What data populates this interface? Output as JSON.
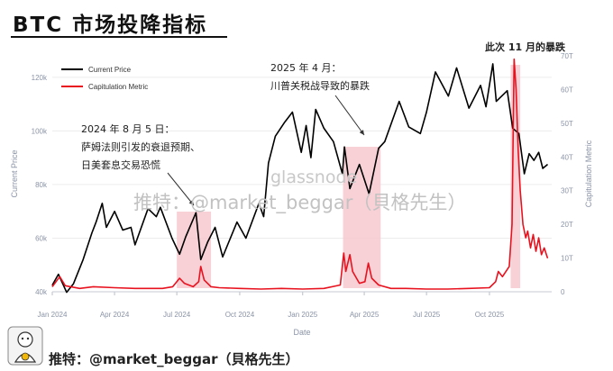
{
  "title": "BTC 市场投降指标",
  "annotations": {
    "aug2024_line1": "2024 年 8 月 5 日：",
    "aug2024_line2": "萨姆法则引发的衰退预期、",
    "aug2024_line3": "日美套息交易恐慌",
    "apr2025_line1": "2025 年 4 月：",
    "apr2025_line2": "川普关税战导致的暴跌",
    "nov2025": "此次 11 月的暴跌"
  },
  "watermark": {
    "main": "glassnode",
    "sub": "推特：@market_beggar（貝格先生）"
  },
  "footer": "推特：@market_beggar（貝格先生）",
  "colors": {
    "price": "#000000",
    "metric": "#e8121f",
    "highlight": "#f7c9d0"
  },
  "chart_data": {
    "type": "line",
    "xlabel": "Date",
    "ylabel_left": "Current Price",
    "ylabel_right": "Capitulation Metric",
    "legend": [
      "Current Price",
      "Capitulation Metric"
    ],
    "legend_position": "top-left",
    "x_ticks": [
      "Jan 2024",
      "Apr 2024",
      "Jul 2024",
      "Oct 2024",
      "Jan 2025",
      "Apr 2025",
      "Jul 2025",
      "Oct 2025"
    ],
    "y_left_ticks": [
      "40k",
      "60k",
      "80k",
      "100k",
      "120k"
    ],
    "y_left_lim": [
      40000,
      128000
    ],
    "y_right_ticks": [
      "0",
      "10T",
      "20T",
      "30T",
      "40T",
      "50T",
      "60T",
      "70T"
    ],
    "y_right_lim": [
      0,
      70
    ],
    "highlight_ranges": [
      [
        "2024-07-01",
        "2024-08-20"
      ],
      [
        "2025-03-01",
        "2025-04-25"
      ],
      [
        "2025-11-01",
        "2025-11-15"
      ]
    ],
    "series": [
      {
        "name": "Current Price",
        "axis": "left",
        "points": [
          [
            "2024-01-01",
            42500
          ],
          [
            "2024-01-10",
            46500
          ],
          [
            "2024-01-22",
            39800
          ],
          [
            "2024-02-01",
            43000
          ],
          [
            "2024-02-15",
            52000
          ],
          [
            "2024-02-28",
            62000
          ],
          [
            "2024-03-05",
            66000
          ],
          [
            "2024-03-14",
            73000
          ],
          [
            "2024-03-20",
            64000
          ],
          [
            "2024-04-01",
            70000
          ],
          [
            "2024-04-13",
            63000
          ],
          [
            "2024-04-25",
            64000
          ],
          [
            "2024-05-01",
            57500
          ],
          [
            "2024-05-20",
            71000
          ],
          [
            "2024-06-01",
            68000
          ],
          [
            "2024-06-07",
            71500
          ],
          [
            "2024-06-24",
            60000
          ],
          [
            "2024-07-05",
            54000
          ],
          [
            "2024-07-14",
            60500
          ],
          [
            "2024-07-29",
            69500
          ],
          [
            "2024-08-05",
            52000
          ],
          [
            "2024-08-15",
            58500
          ],
          [
            "2024-08-26",
            64000
          ],
          [
            "2024-09-06",
            53000
          ],
          [
            "2024-09-27",
            66000
          ],
          [
            "2024-10-10",
            60000
          ],
          [
            "2024-10-29",
            73000
          ],
          [
            "2024-11-05",
            68000
          ],
          [
            "2024-11-12",
            88000
          ],
          [
            "2024-11-22",
            98000
          ],
          [
            "2024-12-05",
            103000
          ],
          [
            "2024-12-17",
            107000
          ],
          [
            "2024-12-30",
            92000
          ],
          [
            "2025-01-06",
            102000
          ],
          [
            "2025-01-13",
            90000
          ],
          [
            "2025-01-20",
            108000
          ],
          [
            "2025-02-01",
            101000
          ],
          [
            "2025-02-15",
            96000
          ],
          [
            "2025-02-28",
            84000
          ],
          [
            "2025-03-03",
            94000
          ],
          [
            "2025-03-11",
            78500
          ],
          [
            "2025-03-25",
            87500
          ],
          [
            "2025-04-08",
            76500
          ],
          [
            "2025-04-22",
            93500
          ],
          [
            "2025-05-01",
            96000
          ],
          [
            "2025-05-22",
            111000
          ],
          [
            "2025-06-05",
            101500
          ],
          [
            "2025-06-22",
            99000
          ],
          [
            "2025-07-01",
            107000
          ],
          [
            "2025-07-14",
            122000
          ],
          [
            "2025-08-02",
            113000
          ],
          [
            "2025-08-14",
            123500
          ],
          [
            "2025-09-01",
            108500
          ],
          [
            "2025-09-18",
            117000
          ],
          [
            "2025-09-26",
            109000
          ],
          [
            "2025-10-06",
            125000
          ],
          [
            "2025-10-11",
            111000
          ],
          [
            "2025-10-27",
            115000
          ],
          [
            "2025-11-04",
            101000
          ],
          [
            "2025-11-13",
            99000
          ],
          [
            "2025-11-21",
            84000
          ],
          [
            "2025-11-28",
            91500
          ],
          [
            "2025-12-05",
            89000
          ],
          [
            "2025-12-12",
            92000
          ],
          [
            "2025-12-18",
            86000
          ],
          [
            "2025-12-25",
            87500
          ]
        ]
      },
      {
        "name": "Capitulation Metric",
        "axis": "right",
        "points": [
          [
            "2024-01-01",
            1.5
          ],
          [
            "2024-01-12",
            4.5
          ],
          [
            "2024-01-20",
            1.8
          ],
          [
            "2024-02-10",
            1.0
          ],
          [
            "2024-03-01",
            1.5
          ],
          [
            "2024-04-01",
            1.2
          ],
          [
            "2024-05-01",
            1.0
          ],
          [
            "2024-06-10",
            1.0
          ],
          [
            "2024-06-25",
            1.5
          ],
          [
            "2024-07-05",
            4.0
          ],
          [
            "2024-07-12",
            2.5
          ],
          [
            "2024-07-25",
            1.5
          ],
          [
            "2024-08-02",
            3.0
          ],
          [
            "2024-08-05",
            7.5
          ],
          [
            "2024-08-10",
            3.5
          ],
          [
            "2024-08-20",
            1.5
          ],
          [
            "2024-09-01",
            1.2
          ],
          [
            "2024-10-01",
            1.0
          ],
          [
            "2024-11-01",
            0.8
          ],
          [
            "2024-12-01",
            1.0
          ],
          [
            "2025-01-01",
            0.8
          ],
          [
            "2025-02-01",
            1.0
          ],
          [
            "2025-02-25",
            2.0
          ],
          [
            "2025-03-02",
            11.5
          ],
          [
            "2025-03-05",
            6.0
          ],
          [
            "2025-03-11",
            11.0
          ],
          [
            "2025-03-15",
            6.0
          ],
          [
            "2025-03-25",
            2.5
          ],
          [
            "2025-04-02",
            3.0
          ],
          [
            "2025-04-07",
            8.5
          ],
          [
            "2025-04-12",
            4.0
          ],
          [
            "2025-04-22",
            2.0
          ],
          [
            "2025-05-10",
            1.0
          ],
          [
            "2025-06-01",
            1.0
          ],
          [
            "2025-07-01",
            0.8
          ],
          [
            "2025-08-01",
            0.8
          ],
          [
            "2025-09-01",
            1.0
          ],
          [
            "2025-10-01",
            1.2
          ],
          [
            "2025-10-10",
            3.0
          ],
          [
            "2025-10-14",
            6.0
          ],
          [
            "2025-10-20",
            4.5
          ],
          [
            "2025-10-30",
            7.5
          ],
          [
            "2025-11-03",
            20.0
          ],
          [
            "2025-11-06",
            69.0
          ],
          [
            "2025-11-09",
            60.0
          ],
          [
            "2025-11-12",
            42.0
          ],
          [
            "2025-11-15",
            30.0
          ],
          [
            "2025-11-19",
            20.0
          ],
          [
            "2025-11-23",
            16.0
          ],
          [
            "2025-11-26",
            18.0
          ],
          [
            "2025-11-30",
            13.0
          ],
          [
            "2025-12-04",
            17.0
          ],
          [
            "2025-12-08",
            12.0
          ],
          [
            "2025-12-12",
            16.0
          ],
          [
            "2025-12-16",
            11.0
          ],
          [
            "2025-12-20",
            13.0
          ],
          [
            "2025-12-25",
            10.0
          ]
        ]
      }
    ]
  }
}
